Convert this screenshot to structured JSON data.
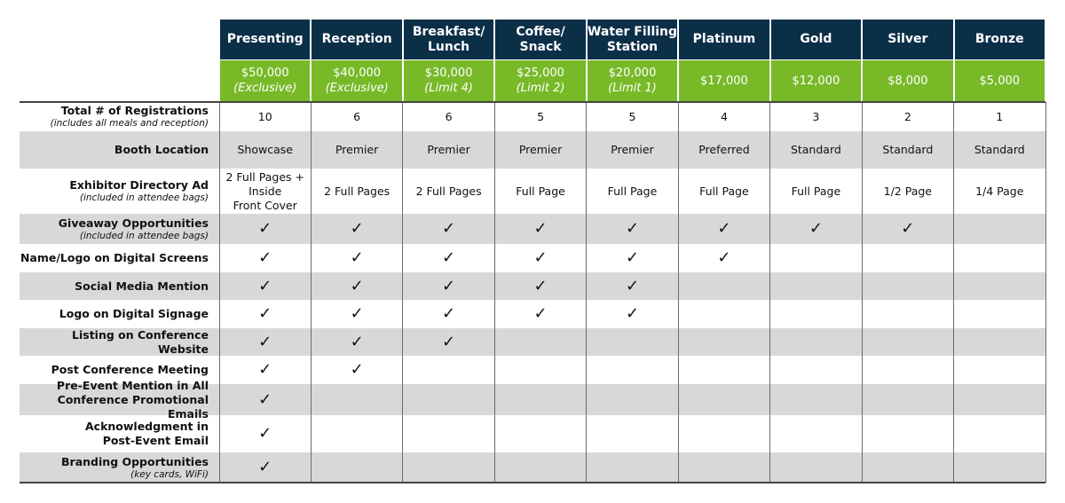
{
  "tiers": [
    {
      "name": "Presenting",
      "price": "$50,000",
      "note": "(Exclusive)"
    },
    {
      "name": "Reception",
      "price": "$40,000",
      "note": "(Exclusive)"
    },
    {
      "name": "Breakfast/\nLunch",
      "price": "$30,000",
      "note": "(Limit 4)"
    },
    {
      "name": "Coffee/\nSnack",
      "price": "$25,000",
      "note": "(Limit 2)"
    },
    {
      "name": "Water Filling\nStation",
      "price": "$20,000",
      "note": "(Limit 1)"
    },
    {
      "name": "Platinum",
      "price": "$17,000"
    },
    {
      "name": "Gold",
      "price": "$12,000"
    },
    {
      "name": "Silver",
      "price": "$8,000"
    },
    {
      "name": "Bronze",
      "price": "$5,000"
    }
  ],
  "rows": [
    {
      "label": "Total # of Registrations",
      "sublabel": "(includes all meals and reception)",
      "cells": [
        "10",
        "6",
        "6",
        "5",
        "5",
        "4",
        "3",
        "2",
        "1"
      ]
    },
    {
      "label": "Booth Location",
      "cells": [
        "Showcase",
        "Premier",
        "Premier",
        "Premier",
        "Premier",
        "Preferred",
        "Standard",
        "Standard",
        "Standard"
      ]
    },
    {
      "label": "Exhibitor Directory Ad",
      "sublabel": "(included in attendee bags)",
      "cells": [
        "2 Full Pages +\nInside\nFront Cover",
        "2 Full Pages",
        "2 Full Pages",
        "Full Page",
        "Full Page",
        "Full Page",
        "Full Page",
        "1/2 Page",
        "1/4 Page"
      ]
    },
    {
      "label": "Giveaway Opportunities",
      "sublabel": "(included in attendee bags)",
      "cells": [
        "✓",
        "✓",
        "✓",
        "✓",
        "✓",
        "✓",
        "✓",
        "✓",
        null
      ]
    },
    {
      "label": "Name/Logo on Digital Screens",
      "cells": [
        "✓",
        "✓",
        "✓",
        "✓",
        "✓",
        "✓",
        null,
        null,
        null
      ]
    },
    {
      "label": "Social Media Mention",
      "cells": [
        "✓",
        "✓",
        "✓",
        "✓",
        "✓",
        null,
        null,
        null,
        null
      ]
    },
    {
      "label": "Logo on Digital Signage",
      "cells": [
        "✓",
        "✓",
        "✓",
        "✓",
        "✓",
        null,
        null,
        null,
        null
      ]
    },
    {
      "label": "Listing on Conference Website",
      "cells": [
        "✓",
        "✓",
        "✓",
        null,
        null,
        null,
        null,
        null,
        null
      ]
    },
    {
      "label": "Post Conference Meeting",
      "cells": [
        "✓",
        "✓",
        null,
        null,
        null,
        null,
        null,
        null,
        null
      ]
    },
    {
      "label": "Pre-Event Mention in All\nConference Promotional Emails",
      "cells": [
        "✓",
        null,
        null,
        null,
        null,
        null,
        null,
        null,
        null
      ]
    },
    {
      "label": "Acknowledgment in\nPost-Event Email",
      "cells": [
        "✓",
        null,
        null,
        null,
        null,
        null,
        null,
        null,
        null
      ]
    },
    {
      "label": "Branding Opportunities",
      "sublabel": "(key cards, WiFi)",
      "cells": [
        "✓",
        null,
        null,
        null,
        null,
        null,
        null,
        null,
        null
      ]
    }
  ]
}
